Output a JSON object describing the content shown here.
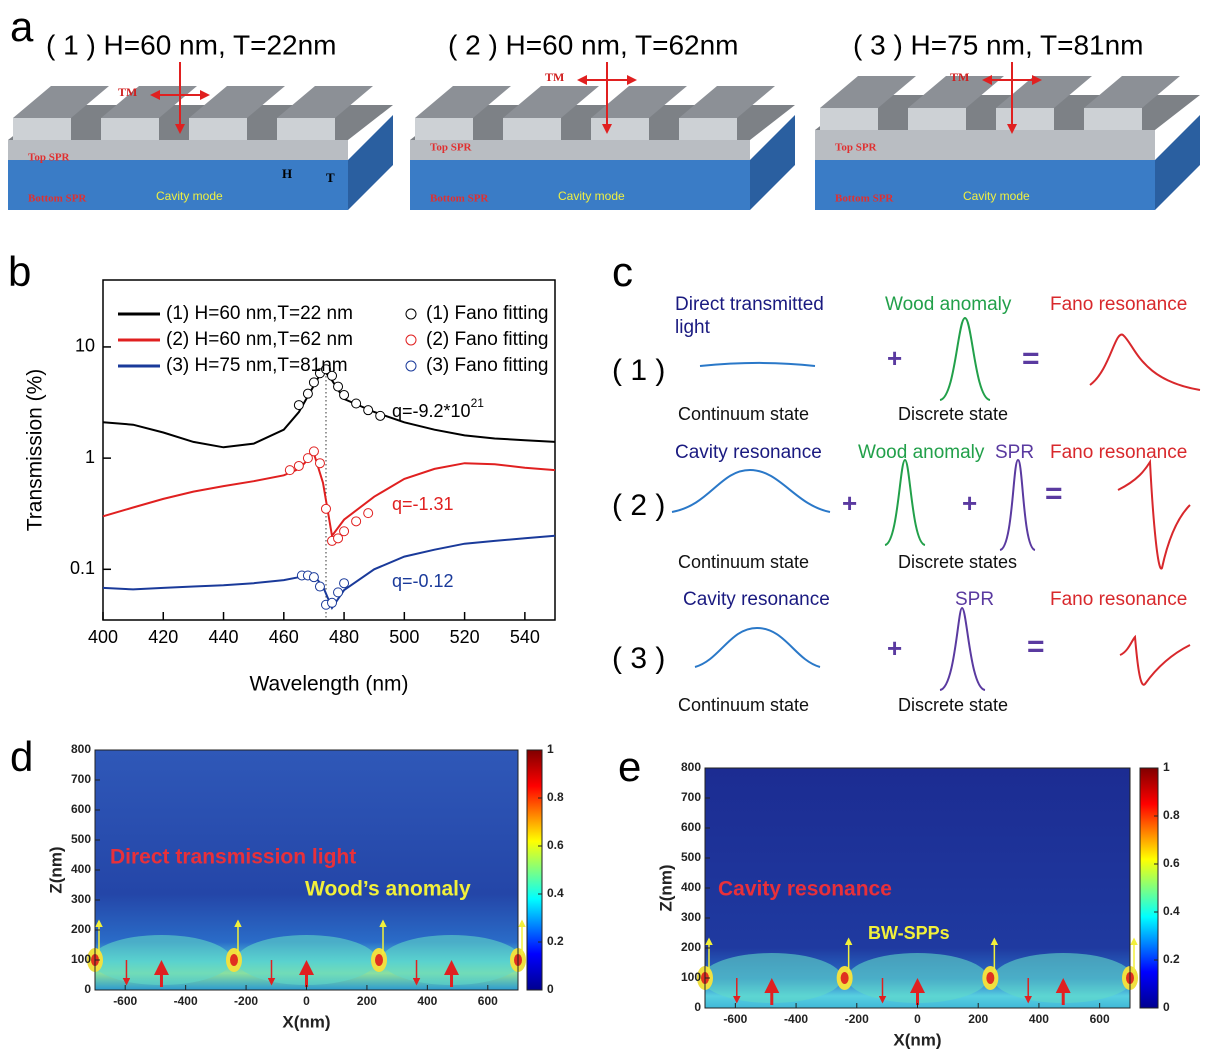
{
  "panel_labels": [
    "a",
    "b",
    "c",
    "d",
    "e"
  ],
  "schematic": {
    "items": [
      {
        "title": "( 1 ) H=60 nm, T=22nm"
      },
      {
        "title": "( 2 ) H=60 nm, T=62nm"
      },
      {
        "title": "( 3 ) H=75 nm, T=81nm"
      }
    ],
    "polarization": "TM",
    "top_spr": "Top SPR",
    "bottom_spr": "Bottom SPR",
    "cavity_mode": "Cavity mode",
    "h": "H",
    "t": "T"
  },
  "chart_data": {
    "type": "line",
    "xlabel": "Wavelength (nm)",
    "ylabel": "Transmission (%)",
    "yscale": "log",
    "xlim": [
      400,
      550
    ],
    "xticks": [
      400,
      420,
      440,
      460,
      480,
      500,
      520,
      540
    ],
    "ylim": [
      0.035,
      40
    ],
    "yticks": [
      0.1,
      1,
      10
    ],
    "x": [
      400,
      410,
      420,
      430,
      440,
      450,
      460,
      465,
      470,
      473,
      476,
      480,
      490,
      500,
      510,
      520,
      530,
      540,
      550
    ],
    "reference_x": 474,
    "series": [
      {
        "name": "(1) H=60 nm,T=22 nm",
        "type": "line",
        "color": "#000000",
        "values": [
          2.1,
          2.0,
          1.7,
          1.4,
          1.25,
          1.35,
          1.8,
          2.6,
          4.5,
          6.3,
          5.0,
          3.4,
          2.6,
          2.1,
          1.8,
          1.6,
          1.5,
          1.45,
          1.4
        ]
      },
      {
        "name": "(2) H=60 nm,T=62 nm",
        "type": "line",
        "color": "#e02020",
        "values": [
          0.3,
          0.36,
          0.43,
          0.5,
          0.56,
          0.62,
          0.7,
          0.8,
          1.1,
          0.6,
          0.2,
          0.28,
          0.45,
          0.65,
          0.8,
          0.9,
          0.88,
          0.82,
          0.78
        ]
      },
      {
        "name": "(3) H=75 nm,T=81nm",
        "type": "line",
        "color": "#1a3a9a",
        "values": [
          0.068,
          0.066,
          0.068,
          0.07,
          0.072,
          0.075,
          0.08,
          0.085,
          0.088,
          0.07,
          0.045,
          0.065,
          0.1,
          0.13,
          0.15,
          0.17,
          0.18,
          0.19,
          0.2
        ]
      },
      {
        "name": "(1) Fano fitting",
        "type": "scatter",
        "color": "#000000",
        "x": [
          465,
          468,
          470,
          472,
          474,
          476,
          478,
          480,
          484,
          488,
          492
        ],
        "values": [
          3.0,
          3.8,
          4.8,
          5.8,
          6.3,
          5.5,
          4.4,
          3.7,
          3.1,
          2.7,
          2.4
        ]
      },
      {
        "name": "(2) Fano fitting",
        "type": "scatter",
        "color": "#e02020",
        "x": [
          462,
          465,
          468,
          470,
          472,
          474,
          476,
          478,
          480,
          484,
          488
        ],
        "values": [
          0.78,
          0.85,
          1.0,
          1.15,
          0.9,
          0.35,
          0.18,
          0.19,
          0.22,
          0.27,
          0.32
        ]
      },
      {
        "name": "(3) Fano fitting",
        "type": "scatter",
        "color": "#1a3a9a",
        "x": [
          466,
          468,
          470,
          472,
          474,
          476,
          478,
          480
        ],
        "values": [
          0.088,
          0.088,
          0.085,
          0.07,
          0.048,
          0.05,
          0.062,
          0.075
        ]
      }
    ],
    "annotations": [
      {
        "text": "q=-9.2*10",
        "sup": "21",
        "color": "#000000"
      },
      {
        "text": "q=-1.31",
        "color": "#e02020"
      },
      {
        "text": "q=-0.12",
        "color": "#1a3a9a"
      }
    ]
  },
  "diagram": {
    "plus": "+",
    "equals": "=",
    "result": "Fano resonance",
    "rows": [
      {
        "index": "( 1 )",
        "continuum": [
          "Direct transmitted",
          "light"
        ],
        "continuum_state": "Continuum state",
        "discrete": [
          "Wood anomaly"
        ],
        "discrete_state": "Discrete state"
      },
      {
        "index": "( 2 )",
        "continuum": [
          "Cavity resonance"
        ],
        "continuum_state": "Continuum state",
        "discrete": [
          "Wood anomaly",
          "SPR"
        ],
        "discrete_state": "Discrete states"
      },
      {
        "index": "( 3 )",
        "continuum": [
          "Cavity resonance"
        ],
        "continuum_state": "Continuum state",
        "discrete": [
          "SPR"
        ],
        "discrete_state": "Discrete state"
      }
    ]
  },
  "field_maps": [
    {
      "xlabel": "X(nm)",
      "ylabel": "Z(nm)",
      "xlim": [
        -700,
        700
      ],
      "ylim": [
        0,
        800
      ],
      "xticks": [
        -600,
        -400,
        -200,
        0,
        200,
        400,
        600
      ],
      "yticks": [
        0,
        100,
        200,
        300,
        400,
        500,
        600,
        700,
        800
      ],
      "colorbar_ticks": [
        0,
        0.2,
        0.4,
        0.6,
        0.8,
        1
      ],
      "annotations": [
        {
          "text": "Direct transmission light",
          "color": "#e8303a"
        },
        {
          "text": "Wood’s anomaly",
          "color": "#f2f03a"
        }
      ]
    },
    {
      "xlabel": "X(nm)",
      "ylabel": "Z(nm)",
      "xlim": [
        -700,
        700
      ],
      "ylim": [
        0,
        800
      ],
      "xticks": [
        -600,
        -400,
        -200,
        0,
        200,
        400,
        600
      ],
      "yticks": [
        0,
        100,
        200,
        300,
        400,
        500,
        600,
        700,
        800
      ],
      "colorbar_ticks": [
        0,
        0.2,
        0.4,
        0.6,
        0.8,
        1
      ],
      "annotations": [
        {
          "text": "Cavity resonance",
          "color": "#e8303a"
        },
        {
          "text": "BW-SPPs",
          "color": "#f2f03a"
        }
      ]
    }
  ]
}
